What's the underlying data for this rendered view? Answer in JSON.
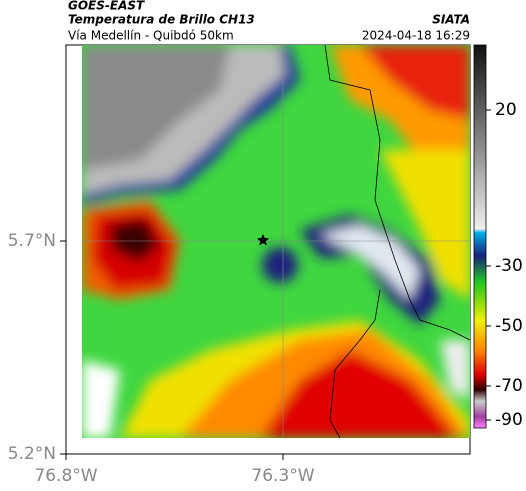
{
  "header": {
    "source": "GOES-EAST",
    "title": "Temperatura de Brillo CH13",
    "org": "SIATA",
    "route": "Vía Medellín - Quibdó 50km",
    "datetime": "2024-04-18 16:29"
  },
  "axes": {
    "y_ticks": [
      "5.7°N",
      "5.2°N"
    ],
    "x_ticks": [
      "76.8°W",
      "76.3°W"
    ]
  },
  "colorbar": {
    "ticks": [
      20,
      -30,
      -50,
      -70,
      -90
    ]
  }
}
